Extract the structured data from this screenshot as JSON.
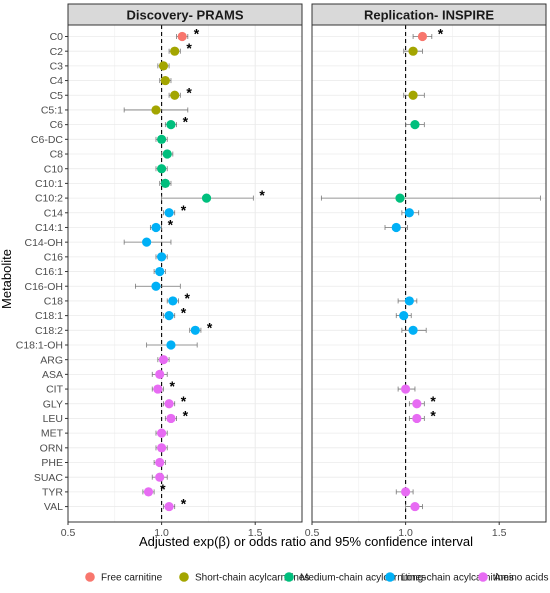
{
  "chart_data": {
    "type": "scatter",
    "ylabel": "Metabolite",
    "xlabel": "Adjusted exp(β) or odds ratio and 95% confidence interval",
    "x_ticks": [
      "0.5",
      "1.0",
      "1.5"
    ],
    "xlim": [
      0.5,
      1.75
    ],
    "grid": true,
    "reference_line": 1.0,
    "legend_position": "bottom",
    "metabolites": [
      "C0",
      "C2",
      "C3",
      "C4",
      "C5",
      "C5:1",
      "C6",
      "C6-DC",
      "C8",
      "C10",
      "C10:1",
      "C10:2",
      "C14",
      "C14:1",
      "C14-OH",
      "C16",
      "C16:1",
      "C16-OH",
      "C18",
      "C18:1",
      "C18:2",
      "C18:1-OH",
      "ARG",
      "ASA",
      "CIT",
      "GLY",
      "LEU",
      "MET",
      "ORN",
      "PHE",
      "SUAC",
      "TYR",
      "VAL"
    ],
    "groups": [
      {
        "name": "Free carnitine",
        "color": "#F8766D"
      },
      {
        "name": "Short-chain acylcarnitines",
        "color": "#A3A500"
      },
      {
        "name": "Medium-chain acylcarnitines",
        "color": "#00BF7D"
      },
      {
        "name": "Long-chain acylcarnitines",
        "color": "#00B0F6"
      },
      {
        "name": "Amino acids",
        "color": "#E76BF3"
      }
    ],
    "metabolite_group": [
      0,
      1,
      1,
      1,
      1,
      1,
      2,
      2,
      2,
      2,
      2,
      2,
      3,
      3,
      3,
      3,
      3,
      3,
      3,
      3,
      3,
      3,
      4,
      4,
      4,
      4,
      4,
      4,
      4,
      4,
      4,
      4,
      4
    ],
    "panels": [
      {
        "title": "Discovery- PRAMS",
        "points": [
          {
            "name": "C0",
            "est": 1.11,
            "lo": 1.08,
            "hi": 1.14,
            "sig": true
          },
          {
            "name": "C2",
            "est": 1.07,
            "lo": 1.04,
            "hi": 1.1,
            "sig": true
          },
          {
            "name": "C3",
            "est": 1.01,
            "lo": 0.98,
            "hi": 1.04,
            "sig": false
          },
          {
            "name": "C4",
            "est": 1.02,
            "lo": 0.99,
            "hi": 1.05,
            "sig": false
          },
          {
            "name": "C5",
            "est": 1.07,
            "lo": 1.04,
            "hi": 1.1,
            "sig": true
          },
          {
            "name": "C5:1",
            "est": 0.97,
            "lo": 0.8,
            "hi": 1.14,
            "sig": false
          },
          {
            "name": "C6",
            "est": 1.05,
            "lo": 1.02,
            "hi": 1.08,
            "sig": true
          },
          {
            "name": "C6-DC",
            "est": 1.0,
            "lo": 0.97,
            "hi": 1.03,
            "sig": false
          },
          {
            "name": "C8",
            "est": 1.03,
            "lo": 1.0,
            "hi": 1.06,
            "sig": false
          },
          {
            "name": "C10",
            "est": 1.0,
            "lo": 0.97,
            "hi": 1.03,
            "sig": false
          },
          {
            "name": "C10:1",
            "est": 1.02,
            "lo": 0.99,
            "hi": 1.05,
            "sig": false
          },
          {
            "name": "C10:2",
            "est": 1.24,
            "lo": 1.0,
            "hi": 1.49,
            "sig": true
          },
          {
            "name": "C14",
            "est": 1.04,
            "lo": 1.01,
            "hi": 1.07,
            "sig": true
          },
          {
            "name": "C14:1",
            "est": 0.97,
            "lo": 0.94,
            "hi": 1.0,
            "sig": true
          },
          {
            "name": "C14-OH",
            "est": 0.92,
            "lo": 0.8,
            "hi": 1.05,
            "sig": false
          },
          {
            "name": "C16",
            "est": 1.0,
            "lo": 0.97,
            "hi": 1.03,
            "sig": false
          },
          {
            "name": "C16:1",
            "est": 0.99,
            "lo": 0.96,
            "hi": 1.02,
            "sig": false
          },
          {
            "name": "C16-OH",
            "est": 0.97,
            "lo": 0.86,
            "hi": 1.1,
            "sig": false
          },
          {
            "name": "C18",
            "est": 1.06,
            "lo": 1.03,
            "hi": 1.09,
            "sig": true
          },
          {
            "name": "C18:1",
            "est": 1.04,
            "lo": 1.01,
            "hi": 1.07,
            "sig": true
          },
          {
            "name": "C18:2",
            "est": 1.18,
            "lo": 1.15,
            "hi": 1.21,
            "sig": true
          },
          {
            "name": "C18:1-OH",
            "est": 1.05,
            "lo": 0.92,
            "hi": 1.19,
            "sig": false
          },
          {
            "name": "ARG",
            "est": 1.01,
            "lo": 0.98,
            "hi": 1.04,
            "sig": false
          },
          {
            "name": "ASA",
            "est": 0.99,
            "lo": 0.95,
            "hi": 1.03,
            "sig": false
          },
          {
            "name": "CIT",
            "est": 0.98,
            "lo": 0.95,
            "hi": 1.01,
            "sig": true
          },
          {
            "name": "GLY",
            "est": 1.04,
            "lo": 1.01,
            "hi": 1.07,
            "sig": true
          },
          {
            "name": "LEU",
            "est": 1.05,
            "lo": 1.02,
            "hi": 1.08,
            "sig": true
          },
          {
            "name": "MET",
            "est": 1.0,
            "lo": 0.97,
            "hi": 1.03,
            "sig": false
          },
          {
            "name": "ORN",
            "est": 1.0,
            "lo": 0.97,
            "hi": 1.03,
            "sig": false
          },
          {
            "name": "PHE",
            "est": 0.99,
            "lo": 0.96,
            "hi": 1.02,
            "sig": false
          },
          {
            "name": "SUAC",
            "est": 0.99,
            "lo": 0.95,
            "hi": 1.03,
            "sig": false
          },
          {
            "name": "TYR",
            "est": 0.93,
            "lo": 0.9,
            "hi": 0.96,
            "sig": true
          },
          {
            "name": "VAL",
            "est": 1.04,
            "lo": 1.01,
            "hi": 1.07,
            "sig": true
          }
        ]
      },
      {
        "title": "Replication- INSPIRE",
        "points": [
          {
            "name": "C0",
            "est": 1.09,
            "lo": 1.04,
            "hi": 1.14,
            "sig": true
          },
          {
            "name": "C2",
            "est": 1.04,
            "lo": 0.99,
            "hi": 1.09,
            "sig": false
          },
          {
            "name": "C5",
            "est": 1.04,
            "lo": 0.99,
            "hi": 1.1,
            "sig": false
          },
          {
            "name": "C6",
            "est": 1.05,
            "lo": 1.0,
            "hi": 1.1,
            "sig": false
          },
          {
            "name": "C10:2",
            "est": 0.97,
            "lo": 0.55,
            "hi": 1.72,
            "sig": false
          },
          {
            "name": "C14",
            "est": 1.02,
            "lo": 0.98,
            "hi": 1.07,
            "sig": false
          },
          {
            "name": "C14:1",
            "est": 0.95,
            "lo": 0.89,
            "hi": 1.01,
            "sig": false
          },
          {
            "name": "C18",
            "est": 1.02,
            "lo": 0.96,
            "hi": 1.06,
            "sig": false
          },
          {
            "name": "C18:1",
            "est": 0.99,
            "lo": 0.95,
            "hi": 1.03,
            "sig": false
          },
          {
            "name": "C18:2",
            "est": 1.04,
            "lo": 0.98,
            "hi": 1.11,
            "sig": false
          },
          {
            "name": "CIT",
            "est": 1.0,
            "lo": 0.96,
            "hi": 1.05,
            "sig": false
          },
          {
            "name": "GLY",
            "est": 1.06,
            "lo": 1.02,
            "hi": 1.1,
            "sig": true
          },
          {
            "name": "LEU",
            "est": 1.06,
            "lo": 1.02,
            "hi": 1.1,
            "sig": true
          },
          {
            "name": "TYR",
            "est": 1.0,
            "lo": 0.95,
            "hi": 1.04,
            "sig": false
          },
          {
            "name": "VAL",
            "est": 1.05,
            "lo": 1.0,
            "hi": 1.09,
            "sig": false
          }
        ]
      }
    ]
  },
  "significance_marker": "*"
}
